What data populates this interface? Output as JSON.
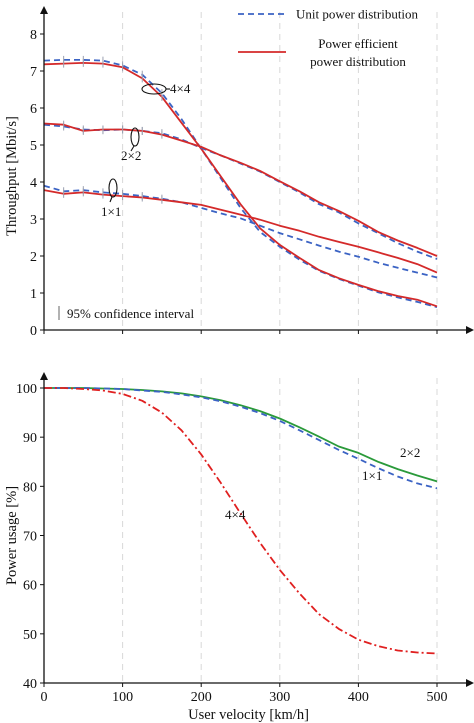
{
  "chart_data": [
    {
      "type": "line",
      "ylabel": "Throughput [Mbit/s]",
      "xlim": [
        0,
        500
      ],
      "ylim": [
        0,
        8
      ],
      "xticks": [
        0,
        100,
        200,
        300,
        400,
        500
      ],
      "yticks": [
        0,
        1,
        2,
        3,
        4,
        5,
        6,
        7,
        8
      ],
      "grid": "vertical dashed",
      "legend_position": "top-right",
      "legend": [
        {
          "label": "Unit power distribution",
          "style": "dashed",
          "color": "#3b63c4"
        },
        {
          "label": "Power efficient power distribution",
          "lines": [
            "Power efficient",
            "power distribution"
          ],
          "style": "solid",
          "color": "#d42a2a"
        }
      ],
      "confidence_note": "95% confidence interval",
      "group_labels": [
        "4×4",
        "2×2",
        "1×1"
      ],
      "x": [
        0,
        25,
        50,
        75,
        100,
        125,
        150,
        175,
        200,
        225,
        250,
        275,
        300,
        325,
        350,
        375,
        400,
        425,
        450,
        475,
        500
      ],
      "series": [
        {
          "group": "4×4",
          "style": "dashed",
          "color": "#3b63c4",
          "values": [
            7.28,
            7.3,
            7.3,
            7.28,
            7.15,
            6.9,
            6.4,
            5.7,
            4.9,
            4.1,
            3.3,
            2.65,
            2.25,
            1.9,
            1.6,
            1.38,
            1.2,
            1.02,
            0.88,
            0.76,
            0.62
          ]
        },
        {
          "group": "4×4",
          "style": "solid",
          "color": "#d42a2a",
          "values": [
            7.18,
            7.2,
            7.22,
            7.2,
            7.1,
            6.8,
            6.3,
            5.6,
            4.9,
            4.15,
            3.4,
            2.75,
            2.3,
            1.95,
            1.62,
            1.4,
            1.22,
            1.05,
            0.92,
            0.82,
            0.64
          ]
        },
        {
          "group": "2×2",
          "style": "dashed",
          "color": "#3b63c4",
          "values": [
            5.55,
            5.5,
            5.42,
            5.4,
            5.42,
            5.38,
            5.32,
            5.15,
            4.92,
            4.72,
            4.5,
            4.28,
            4.0,
            3.72,
            3.4,
            3.18,
            2.88,
            2.62,
            2.35,
            2.12,
            1.92
          ]
        },
        {
          "group": "2×2",
          "style": "solid",
          "color": "#d42a2a",
          "values": [
            5.58,
            5.55,
            5.38,
            5.42,
            5.42,
            5.38,
            5.28,
            5.12,
            4.95,
            4.72,
            4.52,
            4.3,
            4.02,
            3.75,
            3.45,
            3.22,
            2.95,
            2.65,
            2.42,
            2.22,
            2.0
          ]
        },
        {
          "group": "1×1",
          "style": "dashed",
          "color": "#3b63c4",
          "values": [
            3.9,
            3.75,
            3.78,
            3.72,
            3.68,
            3.62,
            3.55,
            3.45,
            3.3,
            3.15,
            3.02,
            2.82,
            2.62,
            2.45,
            2.28,
            2.12,
            1.98,
            1.82,
            1.68,
            1.55,
            1.42
          ]
        },
        {
          "group": "1×1",
          "style": "solid",
          "color": "#d42a2a",
          "values": [
            3.78,
            3.68,
            3.72,
            3.66,
            3.62,
            3.58,
            3.52,
            3.45,
            3.38,
            3.25,
            3.12,
            2.98,
            2.82,
            2.68,
            2.52,
            2.38,
            2.25,
            2.1,
            1.95,
            1.78,
            1.55
          ]
        }
      ]
    },
    {
      "type": "line",
      "xlabel": "User velocity [km/h]",
      "ylabel": "Power usage [%]",
      "xlim": [
        0,
        500
      ],
      "ylim": [
        40,
        100
      ],
      "xticks": [
        0,
        100,
        200,
        300,
        400,
        500
      ],
      "yticks": [
        40,
        50,
        60,
        70,
        80,
        90,
        100
      ],
      "grid": "vertical dashed",
      "x": [
        0,
        25,
        50,
        75,
        100,
        125,
        150,
        175,
        200,
        225,
        250,
        275,
        300,
        325,
        350,
        375,
        400,
        425,
        450,
        475,
        500
      ],
      "series": [
        {
          "label": "2×2",
          "style": "solid",
          "color": "#2a9a3a",
          "values": [
            100,
            100,
            100,
            99.9,
            99.8,
            99.6,
            99.3,
            98.9,
            98.3,
            97.5,
            96.5,
            95.3,
            93.8,
            92.0,
            90.1,
            88.1,
            86.8,
            85.0,
            83.5,
            82.2,
            81.0
          ]
        },
        {
          "label": "1×1",
          "style": "dashed",
          "color": "#3b63c4",
          "values": [
            100,
            100,
            100,
            99.9,
            99.8,
            99.5,
            99.2,
            98.7,
            98.1,
            97.3,
            96.2,
            94.9,
            93.3,
            91.4,
            89.4,
            87.4,
            85.6,
            83.7,
            82.0,
            80.6,
            79.6
          ]
        },
        {
          "label": "4×4",
          "style": "dashdot",
          "color": "#e02020",
          "values": [
            100,
            100,
            99.8,
            99.5,
            98.8,
            97.4,
            95.0,
            91.4,
            86.5,
            80.7,
            74.5,
            68.5,
            63.0,
            58.2,
            54.0,
            51.0,
            48.8,
            47.5,
            46.6,
            46.2,
            46.0
          ]
        }
      ]
    }
  ]
}
